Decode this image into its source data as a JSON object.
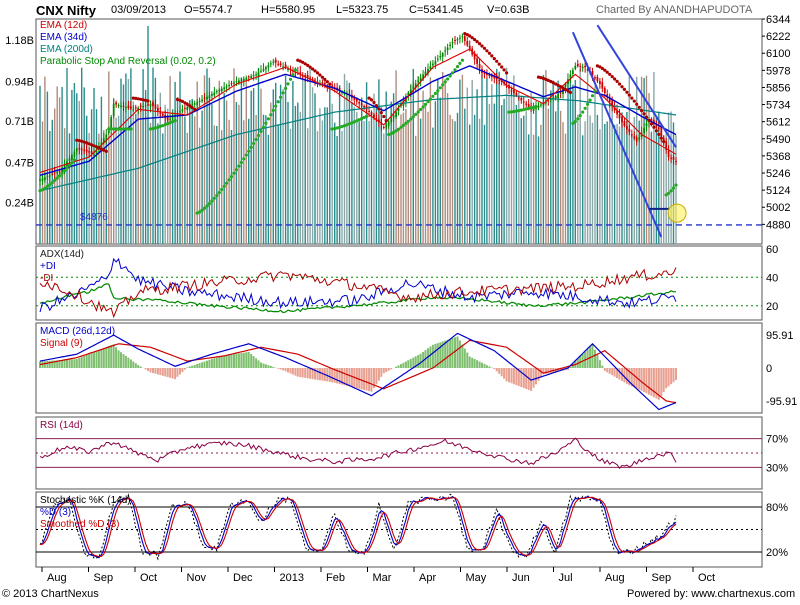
{
  "header": {
    "symbol": "CNX Nifty",
    "date": "03/09/2013",
    "open": "O=5574.7",
    "high": "H=5580.95",
    "low": "L=5323.75",
    "close": "C=5341.45",
    "volume": "V=0.63B",
    "credit": "Charted By ANANDHAPUDOTA"
  },
  "footer": {
    "copyright": "© 2013 ChartNexus",
    "powered": "Powered by: www.chartnexus.com"
  },
  "colors": {
    "ema12": "#dd0000",
    "ema34": "#0000cc",
    "ema200": "#008080",
    "psar_bull": "#22aa22",
    "psar_bear": "#aa0000",
    "trendline": "#3344dd",
    "adx": "#222222",
    "plus_di": "#0000cc",
    "minus_di": "#aa0000",
    "green": "#008800",
    "rsi": "#880044",
    "pane_border": "#555555"
  },
  "chart_data": [
    {
      "type": "line",
      "pane": "price",
      "price_kind": "candlestick",
      "legend": [
        {
          "label": "EMA (12d)",
          "color": "#cc0000"
        },
        {
          "label": "EMA (34d)",
          "color": "#0000cc"
        },
        {
          "label": "EMA (200d)",
          "color": "#008080"
        },
        {
          "label": "Parabolic Stop And Reversal (0.02, 0.2)",
          "color": "#008800"
        }
      ],
      "y_ticks": [
        6344,
        6222,
        6100,
        5978,
        5856,
        5734,
        5612,
        5490,
        5368,
        5246,
        5124,
        5002,
        4880
      ],
      "ylim": [
        4740,
        6344
      ],
      "volume_ticks": [
        "1.18B",
        "0.94B",
        "0.71B",
        "0.47B",
        "0.24B"
      ],
      "volume_ylim": [
        0,
        1.3
      ],
      "support_label": "$4876",
      "support_value": 4876,
      "last_value": 5341.45,
      "x_months": [
        "Aug",
        "Sep",
        "Oct",
        "Nov",
        "Dec",
        "2013",
        "Feb",
        "Mar",
        "Apr",
        "May",
        "Jun",
        "Jul",
        "Aug",
        "Sep",
        "Oct"
      ],
      "anchors": [
        [
          0,
          5200
        ],
        [
          8,
          5260
        ],
        [
          15,
          5420
        ],
        [
          22,
          5380
        ],
        [
          28,
          5550
        ],
        [
          30,
          5740
        ],
        [
          38,
          5700
        ],
        [
          45,
          5740
        ],
        [
          52,
          5620
        ],
        [
          58,
          5700
        ],
        [
          65,
          5760
        ],
        [
          72,
          5830
        ],
        [
          80,
          5900
        ],
        [
          88,
          5950
        ],
        [
          95,
          6040
        ],
        [
          102,
          5980
        ],
        [
          110,
          5920
        ],
        [
          118,
          5860
        ],
        [
          125,
          5810
        ],
        [
          133,
          5700
        ],
        [
          140,
          5570
        ],
        [
          145,
          5680
        ],
        [
          150,
          5820
        ],
        [
          157,
          5970
        ],
        [
          163,
          6080
        ],
        [
          168,
          6180
        ],
        [
          172,
          6220
        ],
        [
          180,
          5960
        ],
        [
          188,
          5900
        ],
        [
          195,
          5780
        ],
        [
          200,
          5700
        ],
        [
          207,
          5760
        ],
        [
          212,
          5820
        ],
        [
          218,
          6010
        ],
        [
          222,
          6000
        ],
        [
          228,
          5880
        ],
        [
          233,
          5720
        ],
        [
          238,
          5580
        ],
        [
          243,
          5470
        ],
        [
          248,
          5630
        ],
        [
          252,
          5560
        ],
        [
          256,
          5360
        ],
        [
          259,
          5330
        ]
      ],
      "ema12": [
        [
          0,
          5250
        ],
        [
          20,
          5360
        ],
        [
          40,
          5700
        ],
        [
          60,
          5660
        ],
        [
          80,
          5880
        ],
        [
          100,
          6000
        ],
        [
          120,
          5830
        ],
        [
          140,
          5590
        ],
        [
          160,
          6000
        ],
        [
          175,
          6130
        ],
        [
          190,
          5870
        ],
        [
          205,
          5740
        ],
        [
          218,
          5950
        ],
        [
          230,
          5780
        ],
        [
          245,
          5520
        ],
        [
          259,
          5380
        ]
      ],
      "ema34": [
        [
          0,
          5230
        ],
        [
          20,
          5330
        ],
        [
          40,
          5630
        ],
        [
          60,
          5660
        ],
        [
          80,
          5830
        ],
        [
          100,
          5950
        ],
        [
          120,
          5850
        ],
        [
          140,
          5690
        ],
        [
          160,
          5900
        ],
        [
          175,
          6010
        ],
        [
          190,
          5900
        ],
        [
          205,
          5790
        ],
        [
          218,
          5860
        ],
        [
          230,
          5800
        ],
        [
          245,
          5650
        ],
        [
          259,
          5520
        ]
      ],
      "ema200": [
        [
          0,
          5120
        ],
        [
          40,
          5280
        ],
        [
          80,
          5520
        ],
        [
          120,
          5680
        ],
        [
          160,
          5770
        ],
        [
          190,
          5800
        ],
        [
          220,
          5760
        ],
        [
          259,
          5660
        ]
      ],
      "psar": [
        {
          "from": 0,
          "to": 14,
          "start": 5120,
          "end": 5340,
          "bull": true
        },
        {
          "from": 15,
          "to": 27,
          "start": 5480,
          "end": 5400,
          "bull": false
        },
        {
          "from": 28,
          "to": 37,
          "start": 5560,
          "end": 5560,
          "bull": true
        },
        {
          "from": 38,
          "to": 44,
          "start": 5780,
          "end": 5760,
          "bull": false
        },
        {
          "from": 45,
          "to": 55,
          "start": 5560,
          "end": 5620,
          "bull": true
        },
        {
          "from": 56,
          "to": 63,
          "start": 5770,
          "end": 5700,
          "bull": false
        },
        {
          "from": 64,
          "to": 104,
          "start": 4960,
          "end": 5980,
          "bull": true
        },
        {
          "from": 105,
          "to": 118,
          "start": 6050,
          "end": 5880,
          "bull": false
        },
        {
          "from": 119,
          "to": 133,
          "start": 5560,
          "end": 5650,
          "bull": true
        },
        {
          "from": 134,
          "to": 141,
          "start": 5780,
          "end": 5620,
          "bull": false
        },
        {
          "from": 142,
          "to": 172,
          "start": 5520,
          "end": 6050,
          "bull": true
        },
        {
          "from": 173,
          "to": 190,
          "start": 6240,
          "end": 5960,
          "bull": false
        },
        {
          "from": 191,
          "to": 202,
          "start": 5680,
          "end": 5720,
          "bull": true
        },
        {
          "from": 203,
          "to": 216,
          "start": 5930,
          "end": 5820,
          "bull": false
        },
        {
          "from": 217,
          "to": 226,
          "start": 5600,
          "end": 5830,
          "bull": true
        },
        {
          "from": 227,
          "to": 254,
          "start": 6010,
          "end": 5470,
          "bull": false
        },
        {
          "from": 255,
          "to": 259,
          "start": 5090,
          "end": 5160,
          "bull": true
        }
      ]
    },
    {
      "type": "line",
      "pane": "adx",
      "legend": [
        {
          "label": "ADX(14d)",
          "color": "#222222"
        },
        {
          "label": "+DI",
          "color": "#0000cc"
        },
        {
          "label": "-DI",
          "color": "#aa0000"
        }
      ],
      "y_ticks": [
        60,
        40,
        20
      ],
      "ylim": [
        10,
        62
      ],
      "guides": [
        40,
        20
      ],
      "adx": [
        [
          0,
          22
        ],
        [
          20,
          30
        ],
        [
          28,
          36
        ],
        [
          30,
          25
        ],
        [
          50,
          24
        ],
        [
          70,
          20
        ],
        [
          100,
          16
        ],
        [
          140,
          22
        ],
        [
          160,
          26
        ],
        [
          180,
          24
        ],
        [
          200,
          20
        ],
        [
          220,
          22
        ],
        [
          240,
          26
        ],
        [
          259,
          30
        ]
      ],
      "plus_di": [
        [
          0,
          18
        ],
        [
          15,
          28
        ],
        [
          28,
          40
        ],
        [
          30,
          55
        ],
        [
          40,
          38
        ],
        [
          60,
          30
        ],
        [
          80,
          26
        ],
        [
          100,
          22
        ],
        [
          130,
          24
        ],
        [
          150,
          36
        ],
        [
          175,
          26
        ],
        [
          200,
          30
        ],
        [
          220,
          26
        ],
        [
          240,
          22
        ],
        [
          259,
          26
        ]
      ],
      "minus_di": [
        [
          0,
          38
        ],
        [
          15,
          28
        ],
        [
          28,
          16
        ],
        [
          30,
          14
        ],
        [
          40,
          30
        ],
        [
          60,
          34
        ],
        [
          80,
          38
        ],
        [
          100,
          42
        ],
        [
          130,
          34
        ],
        [
          150,
          26
        ],
        [
          175,
          30
        ],
        [
          200,
          32
        ],
        [
          220,
          34
        ],
        [
          240,
          40
        ],
        [
          259,
          44
        ]
      ]
    },
    {
      "type": "bar",
      "pane": "macd",
      "legend": [
        {
          "label": "MACD (26d,12d)",
          "color": "#0000cc"
        },
        {
          "label": "Signal (9)",
          "color": "#cc0000"
        }
      ],
      "y_ticks": [
        "95.91",
        "0",
        "-95.91"
      ],
      "ylim": [
        -130,
        130
      ],
      "macd": [
        [
          0,
          20
        ],
        [
          15,
          40
        ],
        [
          30,
          95
        ],
        [
          40,
          55
        ],
        [
          55,
          5
        ],
        [
          70,
          40
        ],
        [
          85,
          70
        ],
        [
          100,
          30
        ],
        [
          118,
          -25
        ],
        [
          135,
          -80
        ],
        [
          155,
          15
        ],
        [
          170,
          100
        ],
        [
          185,
          50
        ],
        [
          200,
          -35
        ],
        [
          215,
          0
        ],
        [
          225,
          70
        ],
        [
          240,
          -40
        ],
        [
          252,
          -120
        ],
        [
          259,
          -100
        ]
      ],
      "signal": [
        [
          0,
          10
        ],
        [
          15,
          30
        ],
        [
          32,
          70
        ],
        [
          45,
          60
        ],
        [
          60,
          20
        ],
        [
          75,
          35
        ],
        [
          90,
          60
        ],
        [
          105,
          40
        ],
        [
          120,
          -5
        ],
        [
          140,
          -60
        ],
        [
          160,
          0
        ],
        [
          175,
          80
        ],
        [
          190,
          60
        ],
        [
          205,
          -15
        ],
        [
          218,
          10
        ],
        [
          230,
          50
        ],
        [
          245,
          -40
        ],
        [
          255,
          -95
        ],
        [
          259,
          -100
        ]
      ]
    },
    {
      "type": "line",
      "pane": "rsi",
      "legend": [
        {
          "label": "RSI (14d)",
          "color": "#880044"
        }
      ],
      "y_ticks": [
        "70%",
        "30%"
      ],
      "ylim": [
        0,
        100
      ],
      "guides": [
        70,
        50,
        30
      ],
      "rsi": [
        [
          0,
          44
        ],
        [
          10,
          58
        ],
        [
          20,
          52
        ],
        [
          30,
          66
        ],
        [
          38,
          52
        ],
        [
          48,
          40
        ],
        [
          60,
          58
        ],
        [
          75,
          64
        ],
        [
          85,
          60
        ],
        [
          95,
          52
        ],
        [
          108,
          42
        ],
        [
          120,
          38
        ],
        [
          135,
          42
        ],
        [
          150,
          54
        ],
        [
          165,
          66
        ],
        [
          175,
          56
        ],
        [
          190,
          42
        ],
        [
          200,
          36
        ],
        [
          210,
          50
        ],
        [
          218,
          68
        ],
        [
          228,
          40
        ],
        [
          238,
          30
        ],
        [
          248,
          44
        ],
        [
          256,
          50
        ],
        [
          259,
          40
        ]
      ]
    },
    {
      "type": "line",
      "pane": "stochastic",
      "legend": [
        {
          "label": "Stochastic %K (14d)",
          "color": "#000000"
        },
        {
          "label": "%D (3)",
          "color": "#0000cc"
        },
        {
          "label": "Smoothed %D (3)",
          "color": "#cc0000"
        }
      ],
      "y_ticks": [
        "80%",
        "20%"
      ],
      "ylim": [
        0,
        100
      ],
      "guides": [
        80,
        50,
        20
      ],
      "k": [
        [
          0,
          30
        ],
        [
          6,
          85
        ],
        [
          12,
          90
        ],
        [
          18,
          20
        ],
        [
          24,
          10
        ],
        [
          30,
          88
        ],
        [
          36,
          92
        ],
        [
          42,
          20
        ],
        [
          48,
          15
        ],
        [
          54,
          80
        ],
        [
          60,
          88
        ],
        [
          66,
          30
        ],
        [
          72,
          25
        ],
        [
          78,
          85
        ],
        [
          84,
          90
        ],
        [
          90,
          60
        ],
        [
          96,
          88
        ],
        [
          102,
          92
        ],
        [
          108,
          25
        ],
        [
          114,
          18
        ],
        [
          120,
          70
        ],
        [
          126,
          20
        ],
        [
          132,
          15
        ],
        [
          138,
          85
        ],
        [
          144,
          20
        ],
        [
          150,
          85
        ],
        [
          156,
          90
        ],
        [
          162,
          92
        ],
        [
          168,
          95
        ],
        [
          174,
          25
        ],
        [
          180,
          20
        ],
        [
          186,
          75
        ],
        [
          192,
          20
        ],
        [
          198,
          15
        ],
        [
          204,
          60
        ],
        [
          210,
          20
        ],
        [
          216,
          90
        ],
        [
          222,
          92
        ],
        [
          228,
          88
        ],
        [
          234,
          18
        ],
        [
          240,
          20
        ],
        [
          246,
          30
        ],
        [
          252,
          40
        ],
        [
          259,
          65
        ]
      ]
    }
  ]
}
